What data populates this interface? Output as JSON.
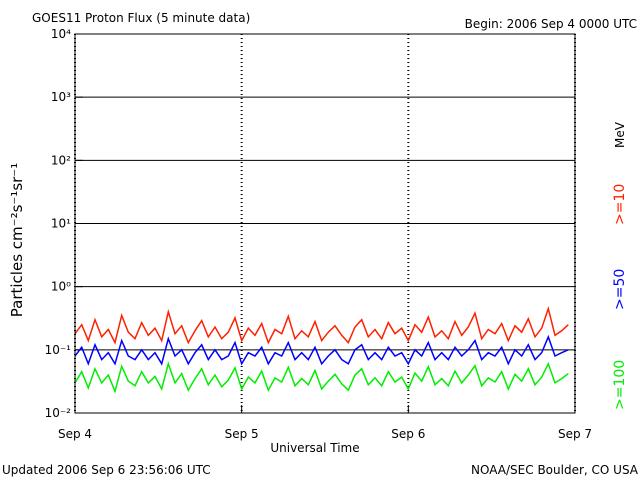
{
  "chart_data": {
    "type": "line",
    "title": "GOES11 Proton Flux (5 minute data)",
    "subtitle": "Begin: 2006 Sep 4 0000 UTC",
    "x_label": "Universal Time",
    "y_label": "Particles cm⁻²s⁻¹sr⁻¹",
    "footer_left": "Updated 2006 Sep  6 23:56:06 UTC",
    "footer_right": "NOAA/SEC Boulder, CO USA",
    "legend_unit": "MeV",
    "y_log": true,
    "grid": true,
    "xlim": [
      4,
      7
    ],
    "xticks": [
      {
        "value": 4,
        "label": "Sep 4"
      },
      {
        "value": 5,
        "label": "Sep 5"
      },
      {
        "value": 6,
        "label": "Sep 6"
      },
      {
        "value": 7,
        "label": "Sep 7"
      }
    ],
    "ylim": [
      0.01,
      10000
    ],
    "yticks": [
      {
        "value": 0.01,
        "label": "10⁻²"
      },
      {
        "value": 0.1,
        "label": "10⁻¹"
      },
      {
        "value": 1,
        "label": "10⁰"
      },
      {
        "value": 10,
        "label": "10¹"
      },
      {
        "value": 100,
        "label": "10²"
      },
      {
        "value": 1000,
        "label": "10³"
      },
      {
        "value": 10000,
        "label": "10⁴"
      }
    ],
    "x": [
      4,
      4.04,
      4.08,
      4.12,
      4.16,
      4.2,
      4.24,
      4.28,
      4.32,
      4.36,
      4.4,
      4.44,
      4.48,
      4.52,
      4.56,
      4.6,
      4.64,
      4.68,
      4.72,
      4.76,
      4.8,
      4.84,
      4.88,
      4.92,
      4.96,
      5,
      5.04,
      5.08,
      5.12,
      5.16,
      5.2,
      5.24,
      5.28,
      5.32,
      5.36,
      5.4,
      5.44,
      5.48,
      5.52,
      5.56,
      5.6,
      5.64,
      5.68,
      5.72,
      5.76,
      5.8,
      5.84,
      5.88,
      5.92,
      5.96,
      6,
      6.04,
      6.08,
      6.12,
      6.16,
      6.2,
      6.24,
      6.28,
      6.32,
      6.36,
      6.4,
      6.44,
      6.48,
      6.52,
      6.56,
      6.6,
      6.64,
      6.68,
      6.72,
      6.76,
      6.8,
      6.84,
      6.88,
      6.92,
      6.96
    ],
    "series": [
      {
        "name": ">=10",
        "color": "#ff2000",
        "values": [
          0.18,
          0.25,
          0.14,
          0.3,
          0.16,
          0.21,
          0.13,
          0.35,
          0.19,
          0.15,
          0.27,
          0.17,
          0.22,
          0.14,
          0.4,
          0.18,
          0.24,
          0.13,
          0.2,
          0.29,
          0.16,
          0.23,
          0.15,
          0.19,
          0.32,
          0.14,
          0.22,
          0.17,
          0.26,
          0.13,
          0.21,
          0.18,
          0.34,
          0.15,
          0.2,
          0.16,
          0.28,
          0.14,
          0.19,
          0.24,
          0.17,
          0.13,
          0.23,
          0.3,
          0.16,
          0.21,
          0.15,
          0.27,
          0.18,
          0.22,
          0.14,
          0.25,
          0.19,
          0.33,
          0.16,
          0.2,
          0.15,
          0.28,
          0.17,
          0.23,
          0.38,
          0.15,
          0.21,
          0.18,
          0.26,
          0.14,
          0.24,
          0.19,
          0.31,
          0.16,
          0.22,
          0.45,
          0.17,
          0.2,
          0.25
        ]
      },
      {
        "name": ">=50",
        "color": "#0000ff",
        "values": [
          0.08,
          0.11,
          0.06,
          0.12,
          0.07,
          0.09,
          0.06,
          0.14,
          0.08,
          0.07,
          0.1,
          0.07,
          0.09,
          0.06,
          0.15,
          0.08,
          0.1,
          0.06,
          0.09,
          0.12,
          0.07,
          0.1,
          0.07,
          0.08,
          0.13,
          0.06,
          0.09,
          0.08,
          0.11,
          0.06,
          0.09,
          0.08,
          0.13,
          0.07,
          0.09,
          0.07,
          0.11,
          0.06,
          0.08,
          0.1,
          0.07,
          0.06,
          0.1,
          0.12,
          0.07,
          0.09,
          0.07,
          0.11,
          0.08,
          0.09,
          0.06,
          0.1,
          0.08,
          0.13,
          0.07,
          0.09,
          0.07,
          0.11,
          0.08,
          0.1,
          0.14,
          0.07,
          0.09,
          0.08,
          0.11,
          0.06,
          0.1,
          0.08,
          0.12,
          0.07,
          0.09,
          0.16,
          0.08,
          0.09,
          0.1
        ]
      },
      {
        "name": ">=100",
        "color": "#00ee00",
        "values": [
          0.03,
          0.045,
          0.025,
          0.05,
          0.03,
          0.04,
          0.022,
          0.055,
          0.032,
          0.027,
          0.045,
          0.03,
          0.038,
          0.024,
          0.06,
          0.03,
          0.042,
          0.023,
          0.035,
          0.05,
          0.028,
          0.04,
          0.026,
          0.033,
          0.052,
          0.024,
          0.037,
          0.03,
          0.046,
          0.023,
          0.036,
          0.031,
          0.053,
          0.027,
          0.035,
          0.028,
          0.047,
          0.024,
          0.032,
          0.041,
          0.029,
          0.023,
          0.04,
          0.05,
          0.028,
          0.036,
          0.027,
          0.045,
          0.031,
          0.037,
          0.024,
          0.043,
          0.032,
          0.054,
          0.028,
          0.035,
          0.027,
          0.046,
          0.03,
          0.04,
          0.056,
          0.027,
          0.036,
          0.031,
          0.045,
          0.024,
          0.041,
          0.032,
          0.05,
          0.028,
          0.037,
          0.06,
          0.03,
          0.035,
          0.042
        ]
      }
    ]
  }
}
